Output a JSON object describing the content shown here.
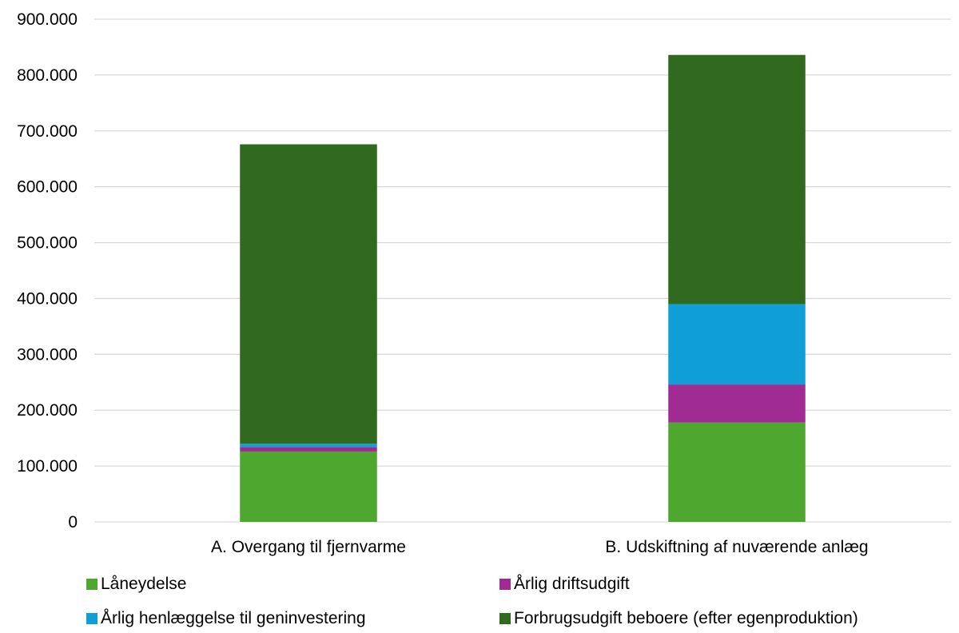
{
  "chart_data": {
    "type": "bar",
    "stacked": true,
    "categories": [
      "A. Overgang til fjernvarme",
      "B. Udskiftning af nuværende anlæg"
    ],
    "series": [
      {
        "name": "Låneydelse",
        "color": "#4ea72e",
        "values": [
          126000,
          178000
        ]
      },
      {
        "name": "Årlig driftsudgift",
        "color": "#a02b93",
        "values": [
          8000,
          68000
        ]
      },
      {
        "name": "Årlig henlæggelse til geninvestering",
        "color": "#0f9ed5",
        "values": [
          6000,
          144000
        ]
      },
      {
        "name": "Forbrugsudgift beboere (efter egenproduktion)",
        "color": "#316a1e",
        "values": [
          536000,
          446000
        ]
      }
    ],
    "ylim": [
      0,
      900000
    ],
    "yticks": [
      0,
      100000,
      200000,
      300000,
      400000,
      500000,
      600000,
      700000,
      800000,
      900000
    ],
    "ytick_labels": [
      "0",
      "100.000",
      "200.000",
      "300.000",
      "400.000",
      "500.000",
      "600.000",
      "700.000",
      "800.000",
      "900.000"
    ],
    "grid": true,
    "legend_position": "bottom",
    "title": "",
    "xlabel": "",
    "ylabel": ""
  }
}
